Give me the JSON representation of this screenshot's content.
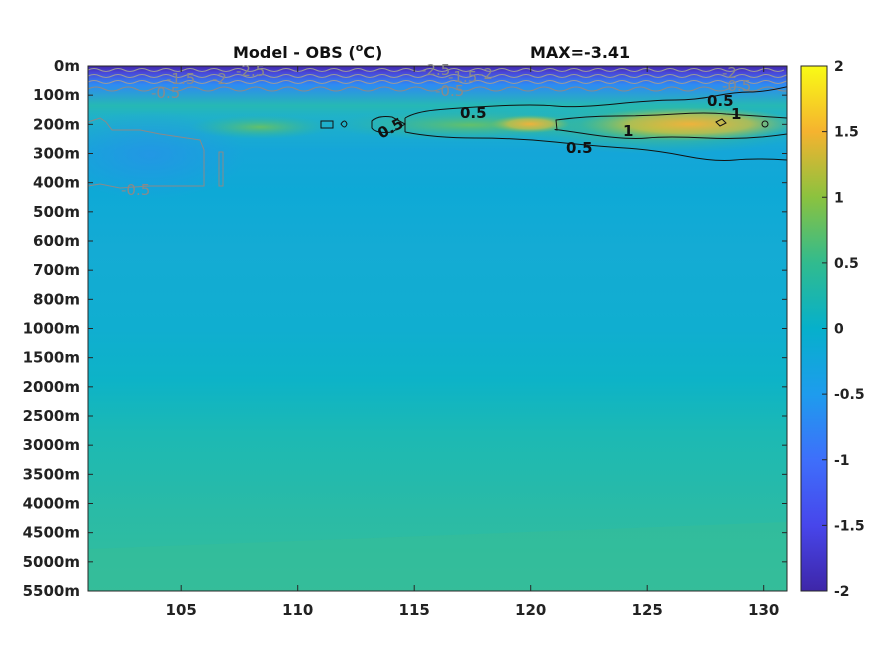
{
  "chart_data": {
    "type": "heatmap",
    "title": "Model - OBS (°C)",
    "title_main": "Model - OBS (",
    "title_unit": "o",
    "title_tail": "C)",
    "max_label": "MAX=-3.41",
    "x_ticks": [
      "105",
      "110",
      "115",
      "120",
      "125",
      "130"
    ],
    "x_tick_values": [
      105,
      110,
      115,
      120,
      125,
      130
    ],
    "xlim": [
      101,
      131
    ],
    "y_ticks": [
      "0m",
      "100m",
      "200m",
      "300m",
      "400m",
      "500m",
      "600m",
      "700m",
      "800m",
      "1000m",
      "1500m",
      "2000m",
      "2500m",
      "3000m",
      "3500m",
      "4000m",
      "4500m",
      "5000m",
      "5500m"
    ],
    "colorbar": {
      "ticks": [
        "2",
        "1.5",
        "1",
        "0.5",
        "0",
        "-0.5",
        "-1",
        "-1.5",
        "-2"
      ],
      "tick_values": [
        2,
        1.5,
        1,
        0.5,
        0,
        -0.5,
        -1,
        -1.5,
        -2
      ],
      "range": [
        -2,
        2
      ],
      "colormap": "parula"
    },
    "field_description_levels": [
      {
        "depth": "0m",
        "value": -2.0
      },
      {
        "depth": "100m",
        "value": -0.6
      },
      {
        "depth": "200m",
        "value": 0.9
      },
      {
        "depth": "300m",
        "value": 0.1
      },
      {
        "depth": "400m",
        "value": -0.2
      },
      {
        "depth": "500m",
        "value": -0.15
      },
      {
        "depth": "1000m",
        "value": -0.2
      },
      {
        "depth": "2000m",
        "value": -0.05
      },
      {
        "depth": "5500m",
        "value": 0.15
      }
    ],
    "contour_labels": [
      {
        "text": "-1.5",
        "kind": "neg"
      },
      {
        "text": "-2",
        "kind": "neg"
      },
      {
        "text": "-2.5",
        "kind": "neg"
      },
      {
        "text": "-0.5",
        "kind": "neg"
      },
      {
        "text": "-2.5",
        "kind": "neg"
      },
      {
        "text": "-1.5",
        "kind": "neg"
      },
      {
        "text": "-2",
        "kind": "neg"
      },
      {
        "text": "-0.5",
        "kind": "neg"
      },
      {
        "text": "-2",
        "kind": "neg"
      },
      {
        "text": "-0.5",
        "kind": "neg"
      },
      {
        "text": "-0.5",
        "kind": "neg"
      },
      {
        "text": "0.5",
        "kind": "pos"
      },
      {
        "text": "0.5",
        "kind": "pos"
      },
      {
        "text": "0.5",
        "kind": "pos"
      },
      {
        "text": "0.5",
        "kind": "pos"
      },
      {
        "text": "1",
        "kind": "pos"
      },
      {
        "text": "1",
        "kind": "pos"
      }
    ]
  }
}
